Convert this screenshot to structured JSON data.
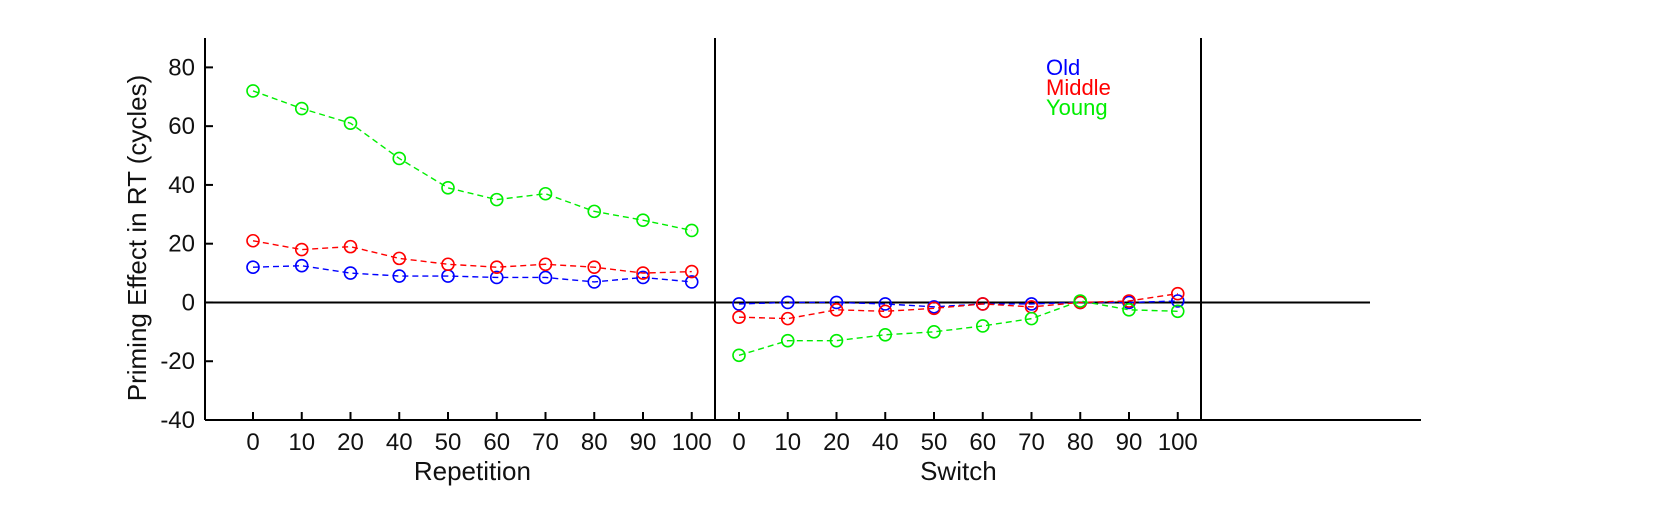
{
  "chart_data": {
    "type": "line",
    "title": "",
    "ylabel": "Priming Effect in RT (cycles)",
    "ylim": [
      -40,
      90
    ],
    "yticks": [
      80,
      60,
      40,
      20,
      0,
      -20,
      -40
    ],
    "grid": false,
    "legend_position": "top-right",
    "groups": [
      {
        "label": "Repetition",
        "categories": [
          "0",
          "10",
          "20",
          "40",
          "50",
          "60",
          "70",
          "80",
          "90",
          "100"
        ]
      },
      {
        "label": "Switch",
        "categories": [
          "0",
          "10",
          "20",
          "40",
          "50",
          "60",
          "70",
          "80",
          "90",
          "100"
        ]
      }
    ],
    "series": [
      {
        "name": "Old",
        "color": "#0000ff",
        "values": [
          [
            12,
            12.5,
            10,
            9,
            9,
            8.5,
            8.5,
            7,
            8.5,
            7
          ],
          [
            -0.5,
            0,
            0,
            -0.5,
            -1.5,
            -0.5,
            -0.5,
            0,
            0,
            0.5
          ]
        ]
      },
      {
        "name": "Middle",
        "color": "#ff0000",
        "values": [
          [
            21,
            18,
            19,
            15,
            13,
            12,
            13,
            12,
            10,
            10.5
          ],
          [
            -5,
            -5.5,
            -2.5,
            -3,
            -2,
            -0.5,
            -1.5,
            0,
            0.5,
            3
          ]
        ]
      },
      {
        "name": "Young",
        "color": "#00ee00",
        "values": [
          [
            72,
            66,
            61,
            49,
            39,
            35,
            37,
            31,
            28,
            24.5
          ],
          [
            -18,
            -13,
            -13,
            -11,
            -10,
            -8,
            -5.5,
            0.5,
            -2.5,
            -3
          ]
        ]
      }
    ]
  }
}
